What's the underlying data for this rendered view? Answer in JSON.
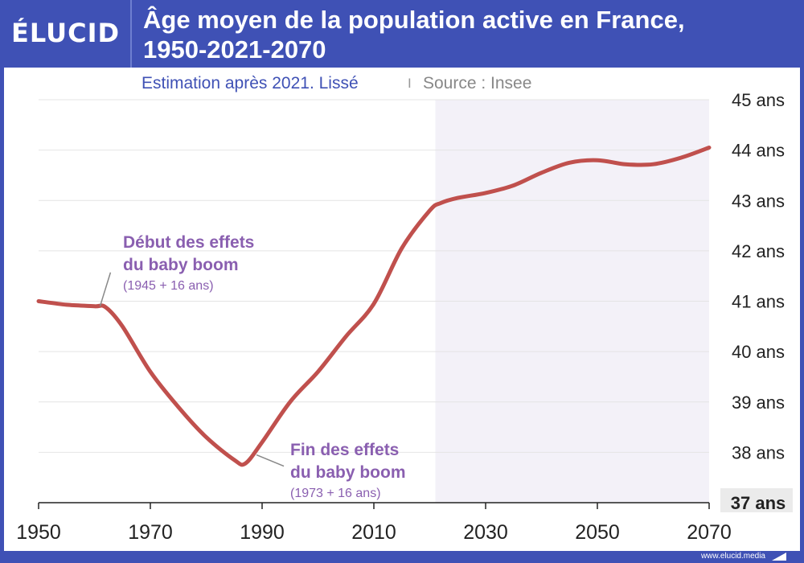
{
  "header": {
    "logo": "ÉLUCID",
    "title_line1": "Âge moyen de la population active en France,",
    "title_line2": "1950-2021-2070"
  },
  "subtitle": {
    "main": "Estimation après 2021. Lissé",
    "separator": "I",
    "source": "Source : Insee"
  },
  "footer": {
    "url": "www.elucid.media"
  },
  "colors": {
    "brand": "#3f51b5",
    "line": "#c0504d",
    "annotation": "#8a5fb0",
    "shade": "#f3f1f8",
    "grid": "#e4e4e4"
  },
  "chart_data": {
    "type": "line",
    "xlim": [
      1950,
      2070
    ],
    "ylim": [
      37,
      45
    ],
    "x_ticks": [
      1950,
      1970,
      1990,
      2010,
      2030,
      2050,
      2070
    ],
    "y_ticks": [
      37,
      38,
      39,
      40,
      41,
      42,
      43,
      44,
      45
    ],
    "y_tick_suffix": " ans",
    "grid": "horizontal",
    "shaded_region": {
      "from": 2021,
      "to": 2070
    },
    "series": [
      {
        "x": [
          1950,
          1955,
          1960,
          1962,
          1965,
          1970,
          1975,
          1980,
          1985,
          1987,
          1990,
          1995,
          2000,
          2005,
          2010,
          2015,
          2020,
          2022,
          2025,
          2030,
          2035,
          2040,
          2045,
          2050,
          2055,
          2060,
          2065,
          2070
        ],
        "y": [
          41.0,
          40.93,
          40.9,
          40.88,
          40.5,
          39.6,
          38.9,
          38.3,
          37.85,
          37.78,
          38.2,
          39.0,
          39.6,
          40.3,
          40.95,
          42.05,
          42.8,
          42.95,
          43.05,
          43.15,
          43.3,
          43.55,
          43.75,
          43.8,
          43.72,
          43.72,
          43.85,
          44.05
        ]
      }
    ],
    "annotations": [
      {
        "line1": "Début des effets",
        "line2": "du baby boom",
        "note": "(1945 + 16 ans)",
        "x": 1961,
        "y": 40.9
      },
      {
        "line1": "Fin des effets",
        "line2": "du baby boom",
        "note": "(1973 + 16 ans)",
        "x": 1989,
        "y": 37.95
      }
    ]
  }
}
